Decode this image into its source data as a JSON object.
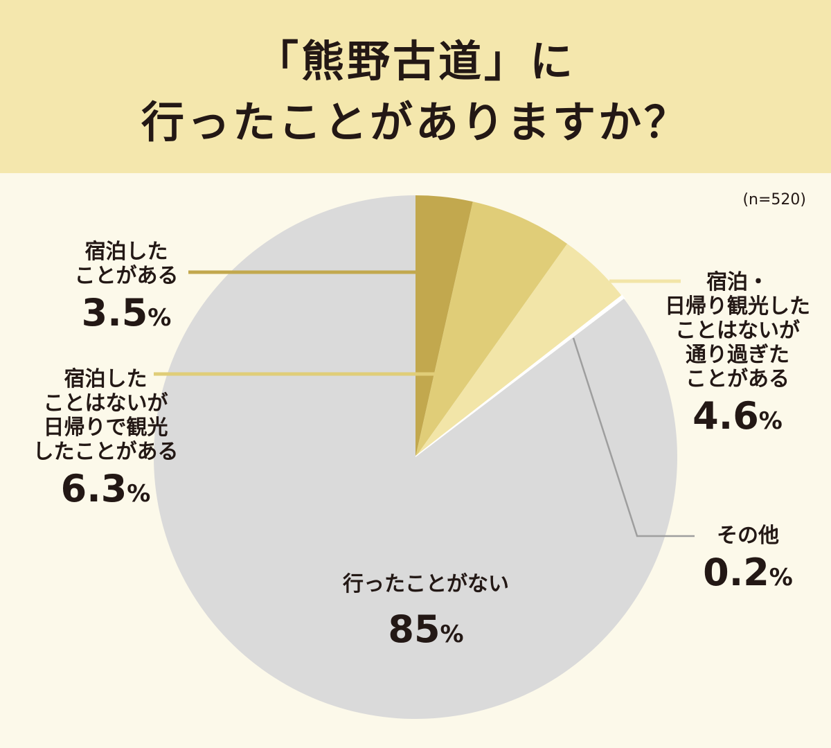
{
  "title": {
    "line1": "「熊野古道」に",
    "line2": "行ったことがありますか？"
  },
  "sample_size": "(n=520)",
  "colors": {
    "header_bg": "#f4e7ad",
    "page_bg": "#fcf9ea",
    "stayed": "#c2a84e",
    "daytrip": "#e0cd78",
    "passed": "#f2e5a8",
    "other": "#ffffff",
    "never": "#dadada"
  },
  "chart_data": {
    "type": "pie",
    "sample_size": 520,
    "slices": [
      {
        "label": "宿泊したことがある",
        "value": 3.5,
        "display": "3.5",
        "color": "#c2a84e"
      },
      {
        "label": "宿泊したことはないが日帰りで観光したことがある",
        "value": 6.3,
        "display": "6.3",
        "color": "#e0cd78"
      },
      {
        "label": "宿泊・日帰り観光したことはないが通り過ぎたことがある",
        "value": 4.6,
        "display": "4.6",
        "color": "#f2e5a8"
      },
      {
        "label": "その他",
        "value": 0.2,
        "display": "0.2",
        "color": "#ffffff"
      },
      {
        "label": "行ったことがない",
        "value": 85,
        "display": "85",
        "color": "#dadada"
      }
    ]
  },
  "labels": {
    "stayed": {
      "lines": [
        "宿泊した",
        "ことがある"
      ],
      "value": "3.5",
      "unit": "%"
    },
    "daytrip": {
      "lines": [
        "宿泊した",
        "ことはないが",
        "日帰りで観光",
        "したことがある"
      ],
      "value": "6.3",
      "unit": "%"
    },
    "passed": {
      "lines": [
        "宿泊・",
        "日帰り観光した",
        "ことはないが",
        "通り過ぎた",
        "ことがある"
      ],
      "value": "4.6",
      "unit": "%"
    },
    "other": {
      "lines": [
        "その他"
      ],
      "value": "0.2",
      "unit": "%"
    },
    "never": {
      "lines": [
        "行ったことがない"
      ],
      "value": "85",
      "unit": "%"
    }
  }
}
